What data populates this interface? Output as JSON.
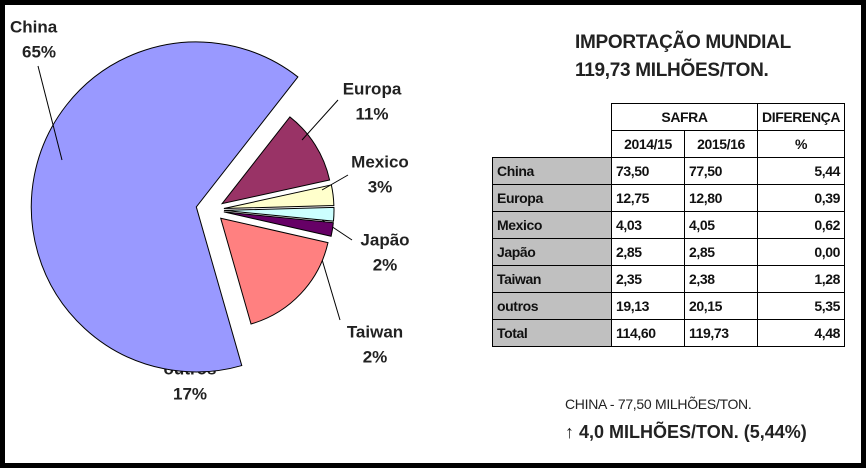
{
  "chart_data": {
    "type": "pie",
    "categories": [
      "China",
      "Europa",
      "Mexico",
      "Japão",
      "Taiwan",
      "outros"
    ],
    "values": [
      65,
      11,
      3,
      2,
      2,
      17
    ],
    "value_labels": [
      "65%",
      "11%",
      "3%",
      "2%",
      "2%",
      "17%"
    ],
    "colors": [
      "#9999ff",
      "#993366",
      "#ffffcc",
      "#ccffff",
      "#660066",
      "#ff8080"
    ]
  },
  "title": [
    "IMPORTAÇÃO MUNDIAL",
    "119,73 MILHÕES/TON."
  ],
  "table": {
    "header": [
      "SAFRA",
      "DIFERENÇA"
    ],
    "subheader": [
      "2014/15",
      "2015/16",
      "%"
    ],
    "rows": [
      [
        "China",
        "73,50",
        "77,50",
        "5,44"
      ],
      [
        "Europa",
        "12,75",
        "12,80",
        "0,39"
      ],
      [
        "Mexico",
        "4,03",
        "4,05",
        "0,62"
      ],
      [
        "Japão",
        "2,85",
        "2,85",
        "0,00"
      ],
      [
        "Taiwan",
        "2,35",
        "2,38",
        "1,28"
      ],
      [
        "outros",
        "19,13",
        "20,15",
        "5,35"
      ],
      [
        "Total",
        "114,60",
        "119,73",
        "4,48"
      ]
    ]
  },
  "notes": [
    "CHINA - 77,50 MILHÕES/TON.",
    "↑ 4,0 MILHÕES/TON. (5,44%)"
  ]
}
